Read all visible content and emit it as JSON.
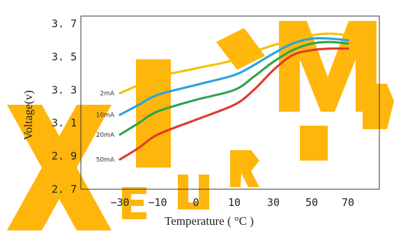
{
  "colors": {
    "watermark": "#ffb300",
    "frame": "#333333"
  },
  "chart_data": {
    "type": "line",
    "xlabel": "Temperature ( °C )",
    "ylabel": "Voltage(v)",
    "xlim": [
      -30,
      70
    ],
    "ylim": [
      2.7,
      3.7
    ],
    "x_ticks": [
      "−30",
      "−10",
      "0",
      "10",
      "30",
      "50",
      "70"
    ],
    "x_tick_values": [
      -30,
      -10,
      0,
      10,
      30,
      50,
      70
    ],
    "y_ticks": [
      "3. 7",
      "3. 5",
      "3. 3",
      "3. 1",
      "2. 9",
      "2. 7"
    ],
    "y_tick_values": [
      3.7,
      3.5,
      3.3,
      3.1,
      2.9,
      2.7
    ],
    "grid": false,
    "series": [
      {
        "name": "2mA",
        "color": "#f5c000",
        "points": [
          [
            -30,
            3.28
          ],
          [
            -20,
            3.33
          ],
          [
            -10,
            3.38
          ],
          [
            0,
            3.43
          ],
          [
            10,
            3.48
          ],
          [
            20,
            3.53
          ],
          [
            30,
            3.57
          ],
          [
            40,
            3.6
          ],
          [
            50,
            3.63
          ],
          [
            60,
            3.64
          ],
          [
            70,
            3.63
          ]
        ]
      },
      {
        "name": "10mA",
        "color": "#29a3dc",
        "points": [
          [
            -30,
            3.15
          ],
          [
            -20,
            3.21
          ],
          [
            -10,
            3.27
          ],
          [
            0,
            3.33
          ],
          [
            10,
            3.39
          ],
          [
            20,
            3.45
          ],
          [
            30,
            3.52
          ],
          [
            40,
            3.58
          ],
          [
            50,
            3.61
          ],
          [
            60,
            3.61
          ],
          [
            70,
            3.6
          ]
        ]
      },
      {
        "name": "20mA",
        "color": "#2ea44f",
        "points": [
          [
            -30,
            3.03
          ],
          [
            -20,
            3.1
          ],
          [
            -10,
            3.17
          ],
          [
            0,
            3.24
          ],
          [
            10,
            3.3
          ],
          [
            20,
            3.38
          ],
          [
            30,
            3.47
          ],
          [
            40,
            3.54
          ],
          [
            50,
            3.58
          ],
          [
            60,
            3.59
          ],
          [
            70,
            3.58
          ]
        ]
      },
      {
        "name": "50mA",
        "color": "#e03a2c",
        "points": [
          [
            -30,
            2.88
          ],
          [
            -20,
            2.95
          ],
          [
            -10,
            3.03
          ],
          [
            0,
            3.12
          ],
          [
            10,
            3.21
          ],
          [
            20,
            3.3
          ],
          [
            30,
            3.42
          ],
          [
            40,
            3.51
          ],
          [
            50,
            3.54
          ],
          [
            60,
            3.55
          ],
          [
            70,
            3.55
          ]
        ]
      }
    ]
  }
}
